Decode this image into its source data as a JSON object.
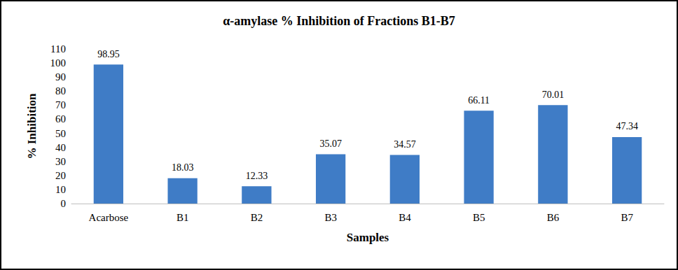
{
  "chart_data": {
    "type": "bar",
    "title": "α-amylase % Inhibition of Fractions B1-B7",
    "x_label": "Samples",
    "y_label": "% Inhibition",
    "categories": [
      "Acarbose",
      "B1",
      "B2",
      "B3",
      "B4",
      "B5",
      "B6",
      "B7"
    ],
    "values": [
      98.95,
      18.03,
      12.33,
      35.07,
      34.57,
      66.11,
      70.01,
      47.34
    ],
    "color": "#3f7cc6",
    "ylim": [
      0,
      110
    ],
    "yticks": [
      0,
      10,
      20,
      30,
      40,
      50,
      60,
      70,
      80,
      90,
      100,
      110
    ],
    "grid": false,
    "data_labels": true
  }
}
